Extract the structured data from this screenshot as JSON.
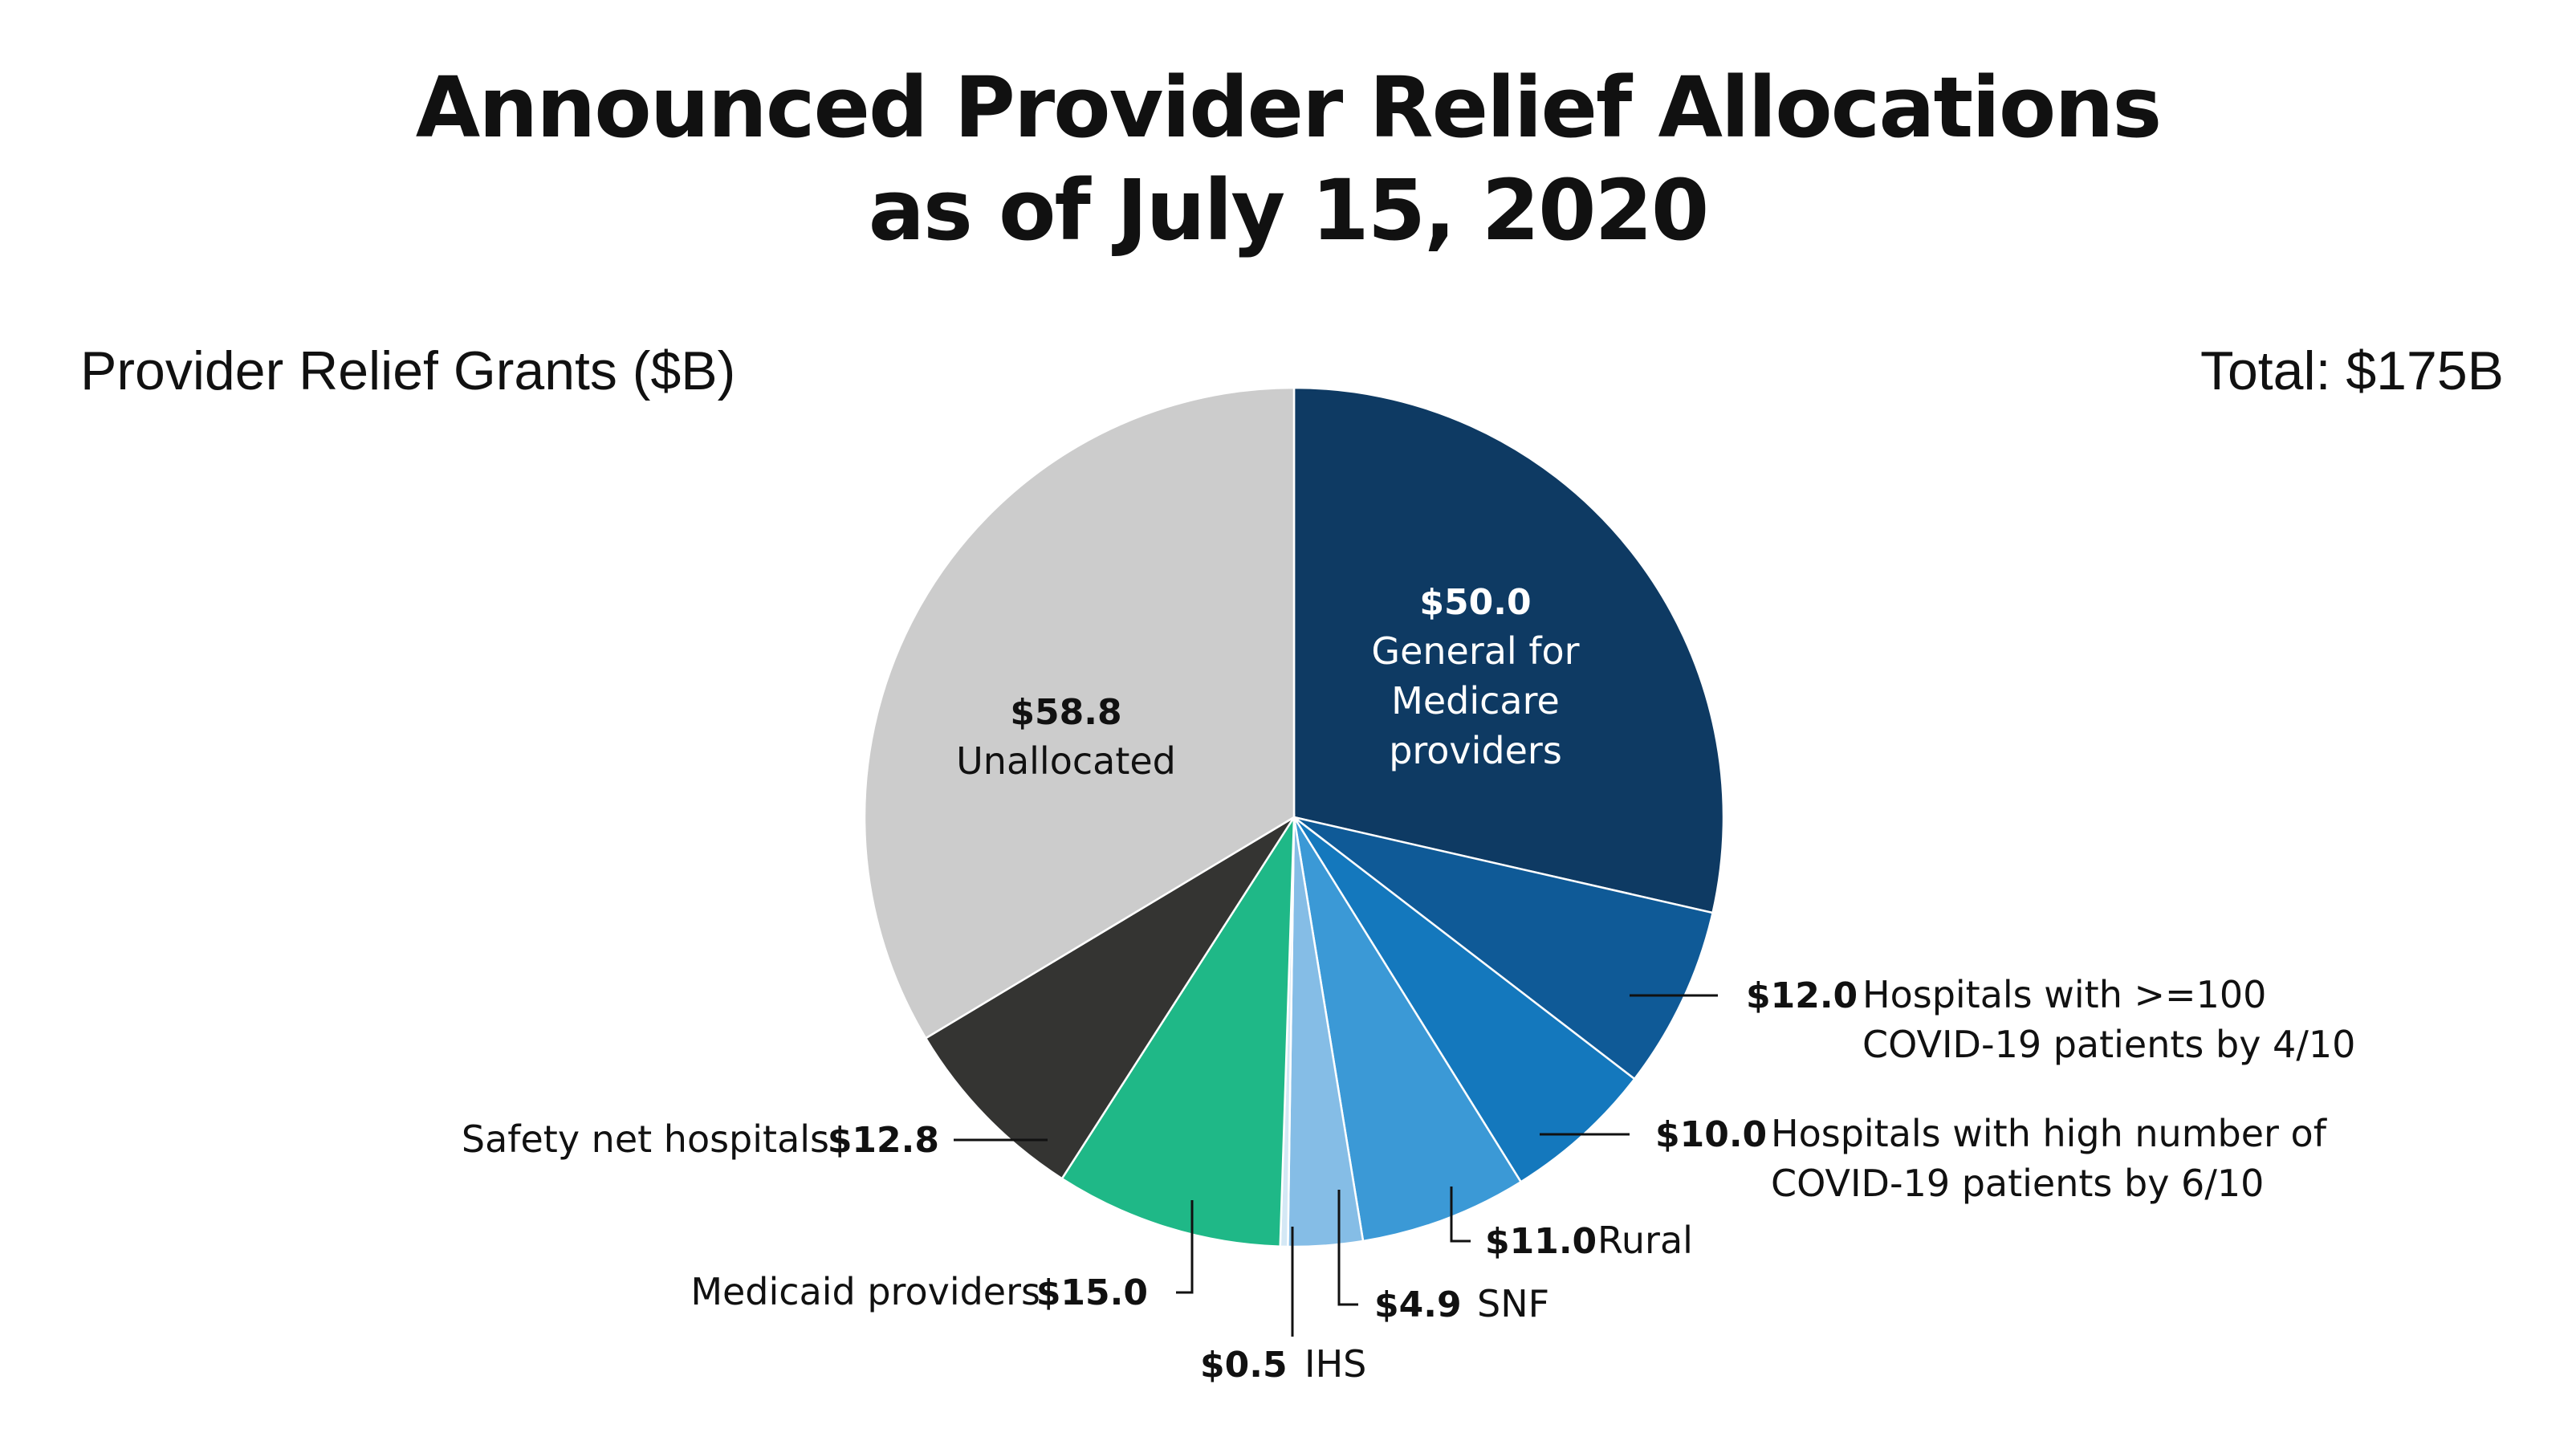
{
  "title_lines": [
    "Announced Provider Relief Allocations",
    "as of July 15, 2020"
  ],
  "subtitle": "Provider Relief Grants ($B)",
  "total": "Total: $175B",
  "chart_data": {
    "type": "pie",
    "title": "Announced Provider Relief Allocations as of July 15, 2020",
    "unit": "$B",
    "total": 175,
    "slices": [
      {
        "value": 50.0,
        "value_label": "$50.0",
        "label_lines": [
          "General for",
          "Medicare",
          "providers"
        ],
        "color": "#0e3a63"
      },
      {
        "value": 12.0,
        "value_label": "$12.0",
        "label_lines": [
          "Hospitals with >=100",
          "COVID-19 patients by 4/10"
        ],
        "color": "#0f5a97"
      },
      {
        "value": 10.0,
        "value_label": "$10.0",
        "label_lines": [
          "Hospitals with high number of",
          "COVID-19 patients by 6/10"
        ],
        "color": "#1478bd"
      },
      {
        "value": 11.0,
        "value_label": "$11.0",
        "label_lines": [
          "Rural"
        ],
        "color": "#3b99d6"
      },
      {
        "value": 4.9,
        "value_label": "$4.9",
        "label_lines": [
          "SNF"
        ],
        "color": "#85bde6"
      },
      {
        "value": 0.5,
        "value_label": "$0.5",
        "label_lines": [
          "IHS"
        ],
        "color": "#d4e8f5"
      },
      {
        "value": 15.0,
        "value_label": "$15.0",
        "label_lines": [
          "Medicaid providers"
        ],
        "color": "#1fb887"
      },
      {
        "value": 12.8,
        "value_label": "$12.8",
        "label_lines": [
          "Safety net hospitals"
        ],
        "color": "#343432"
      },
      {
        "value": 58.8,
        "value_label": "$58.8",
        "label_lines": [
          "Unallocated"
        ],
        "color": "#cccccc"
      }
    ]
  }
}
